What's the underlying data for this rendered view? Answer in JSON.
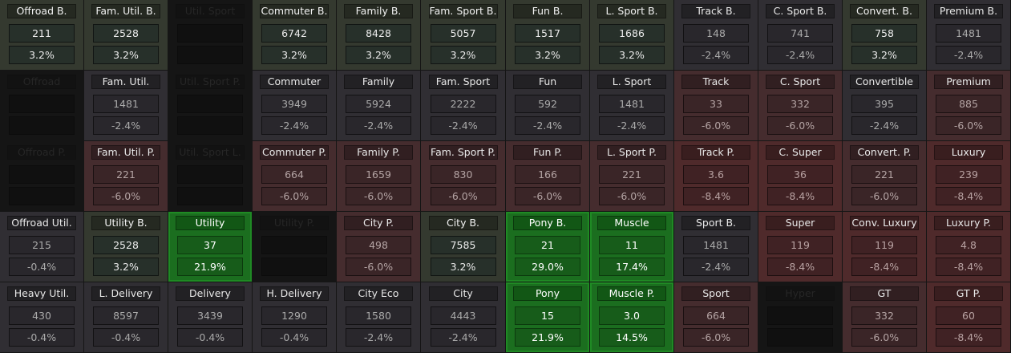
{
  "grid": {
    "rows": [
      [
        {
          "name": "Offroad B.",
          "value": "211",
          "change": "3.2%",
          "state": "pos"
        },
        {
          "name": "Fam. Util. B.",
          "value": "2528",
          "change": "3.2%",
          "state": "pos"
        },
        {
          "name": "Util. Sport",
          "value": "",
          "change": "",
          "state": "na"
        },
        {
          "name": "Commuter B.",
          "value": "6742",
          "change": "3.2%",
          "state": "pos"
        },
        {
          "name": "Family B.",
          "value": "8428",
          "change": "3.2%",
          "state": "pos"
        },
        {
          "name": "Fam. Sport B.",
          "value": "5057",
          "change": "3.2%",
          "state": "pos"
        },
        {
          "name": "Fun B.",
          "value": "1517",
          "change": "3.2%",
          "state": "pos"
        },
        {
          "name": "L. Sport B.",
          "value": "1686",
          "change": "3.2%",
          "state": "pos"
        },
        {
          "name": "Track B.",
          "value": "148",
          "change": "-2.4%",
          "state": "neu"
        },
        {
          "name": "C. Sport B.",
          "value": "741",
          "change": "-2.4%",
          "state": "neu"
        },
        {
          "name": "Convert. B.",
          "value": "758",
          "change": "3.2%",
          "state": "pos"
        },
        {
          "name": "Premium B.",
          "value": "1481",
          "change": "-2.4%",
          "state": "neu"
        }
      ],
      [
        {
          "name": "Offroad",
          "value": "",
          "change": "",
          "state": "na"
        },
        {
          "name": "Fam. Util.",
          "value": "1481",
          "change": "-2.4%",
          "state": "neu"
        },
        {
          "name": "Util. Sport P.",
          "value": "",
          "change": "",
          "state": "na"
        },
        {
          "name": "Commuter",
          "value": "3949",
          "change": "-2.4%",
          "state": "neu"
        },
        {
          "name": "Family",
          "value": "5924",
          "change": "-2.4%",
          "state": "neu"
        },
        {
          "name": "Fam. Sport",
          "value": "2222",
          "change": "-2.4%",
          "state": "neu"
        },
        {
          "name": "Fun",
          "value": "592",
          "change": "-2.4%",
          "state": "neu"
        },
        {
          "name": "L. Sport",
          "value": "1481",
          "change": "-2.4%",
          "state": "neu"
        },
        {
          "name": "Track",
          "value": "33",
          "change": "-6.0%",
          "state": "neg"
        },
        {
          "name": "C. Sport",
          "value": "332",
          "change": "-6.0%",
          "state": "neg"
        },
        {
          "name": "Convertible",
          "value": "395",
          "change": "-2.4%",
          "state": "neu"
        },
        {
          "name": "Premium",
          "value": "885",
          "change": "-6.0%",
          "state": "neg"
        }
      ],
      [
        {
          "name": "Offroad P.",
          "value": "",
          "change": "",
          "state": "na"
        },
        {
          "name": "Fam. Util. P.",
          "value": "221",
          "change": "-6.0%",
          "state": "neg"
        },
        {
          "name": "Util. Sport L.",
          "value": "",
          "change": "",
          "state": "na"
        },
        {
          "name": "Commuter P.",
          "value": "664",
          "change": "-6.0%",
          "state": "neg"
        },
        {
          "name": "Family P.",
          "value": "1659",
          "change": "-6.0%",
          "state": "neg"
        },
        {
          "name": "Fam. Sport P.",
          "value": "830",
          "change": "-6.0%",
          "state": "neg"
        },
        {
          "name": "Fun P.",
          "value": "166",
          "change": "-6.0%",
          "state": "neg"
        },
        {
          "name": "L. Sport P.",
          "value": "221",
          "change": "-6.0%",
          "state": "neg"
        },
        {
          "name": "Track P.",
          "value": "3.6",
          "change": "-8.4%",
          "state": "neg2"
        },
        {
          "name": "C. Super",
          "value": "36",
          "change": "-8.4%",
          "state": "neg2"
        },
        {
          "name": "Convert. P.",
          "value": "221",
          "change": "-6.0%",
          "state": "neg"
        },
        {
          "name": "Luxury",
          "value": "239",
          "change": "-8.4%",
          "state": "neg2"
        }
      ],
      [
        {
          "name": "Offroad Util.",
          "value": "215",
          "change": "-0.4%",
          "state": "neu"
        },
        {
          "name": "Utility B.",
          "value": "2528",
          "change": "3.2%",
          "state": "pos"
        },
        {
          "name": "Utility",
          "value": "37",
          "change": "21.9%",
          "state": "hi"
        },
        {
          "name": "Utility P.",
          "value": "",
          "change": "",
          "state": "na"
        },
        {
          "name": "City P.",
          "value": "498",
          "change": "-6.0%",
          "state": "neg"
        },
        {
          "name": "City B.",
          "value": "7585",
          "change": "3.2%",
          "state": "pos"
        },
        {
          "name": "Pony B.",
          "value": "21",
          "change": "29.0%",
          "state": "hi"
        },
        {
          "name": "Muscle",
          "value": "11",
          "change": "17.4%",
          "state": "hi"
        },
        {
          "name": "Sport B.",
          "value": "1481",
          "change": "-2.4%",
          "state": "neu"
        },
        {
          "name": "Super",
          "value": "119",
          "change": "-8.4%",
          "state": "neg2"
        },
        {
          "name": "Conv. Luxury",
          "value": "119",
          "change": "-8.4%",
          "state": "neg2"
        },
        {
          "name": "Luxury P.",
          "value": "4.8",
          "change": "-8.4%",
          "state": "neg2"
        }
      ],
      [
        {
          "name": "Heavy Util.",
          "value": "430",
          "change": "-0.4%",
          "state": "neu"
        },
        {
          "name": "L. Delivery",
          "value": "8597",
          "change": "-0.4%",
          "state": "neu"
        },
        {
          "name": "Delivery",
          "value": "3439",
          "change": "-0.4%",
          "state": "neu"
        },
        {
          "name": "H. Delivery",
          "value": "1290",
          "change": "-0.4%",
          "state": "neu"
        },
        {
          "name": "City Eco",
          "value": "1580",
          "change": "-2.4%",
          "state": "neu"
        },
        {
          "name": "City",
          "value": "4443",
          "change": "-2.4%",
          "state": "neu"
        },
        {
          "name": "Pony",
          "value": "15",
          "change": "21.9%",
          "state": "hi"
        },
        {
          "name": "Muscle P.",
          "value": "3.0",
          "change": "14.5%",
          "state": "hi"
        },
        {
          "name": "Sport",
          "value": "664",
          "change": "-6.0%",
          "state": "neg"
        },
        {
          "name": "Hyper",
          "value": "",
          "change": "",
          "state": "na"
        },
        {
          "name": "GT",
          "value": "332",
          "change": "-6.0%",
          "state": "neg"
        },
        {
          "name": "GT P.",
          "value": "60",
          "change": "-8.4%",
          "state": "neg2"
        }
      ]
    ]
  }
}
